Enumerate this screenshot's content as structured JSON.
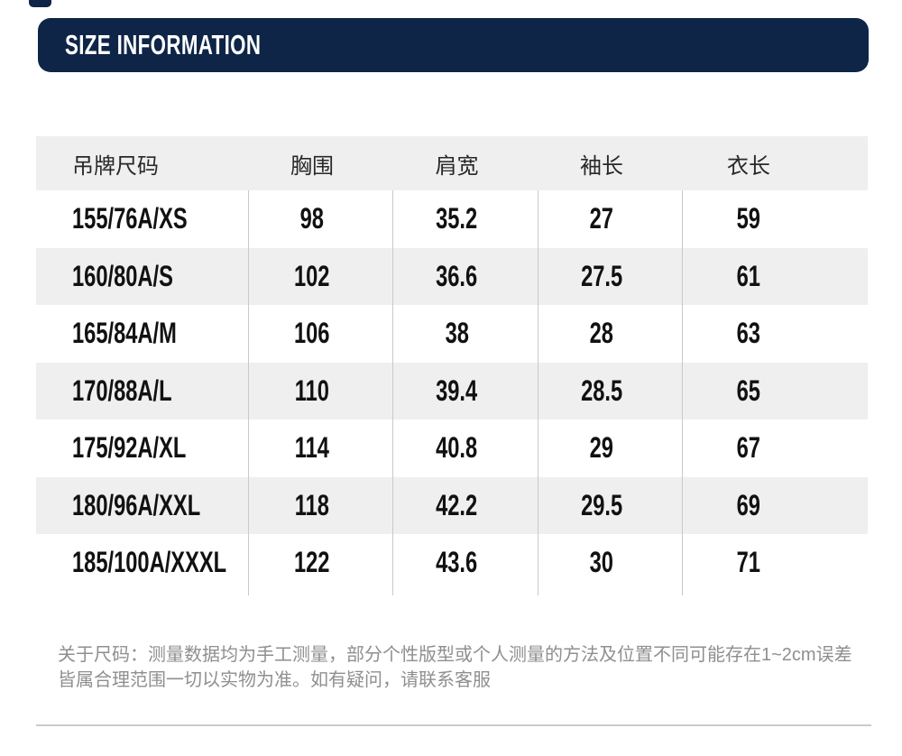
{
  "theme": {
    "navy": "#0e2547",
    "row_alt": "#efefef",
    "cell_line": "#c9c9c9",
    "text_dark": "#111111",
    "header_text": "#282828",
    "note_text": "#8f8f8f",
    "divider": "#cbcbcb",
    "page_bg": "#ffffff"
  },
  "header": {
    "title": "SIZE INFORMATION"
  },
  "size_table": {
    "columns": [
      "吊牌尺码",
      "胸围",
      "肩宽",
      "袖长",
      "衣长"
    ],
    "rows": [
      [
        "155/76A/XS",
        "98",
        "35.2",
        "27",
        "59"
      ],
      [
        "160/80A/S",
        "102",
        "36.6",
        "27.5",
        "61"
      ],
      [
        "165/84A/M",
        "106",
        "38",
        "28",
        "63"
      ],
      [
        "170/88A/L",
        "110",
        "39.4",
        "28.5",
        "65"
      ],
      [
        "175/92A/XL",
        "114",
        "40.8",
        "29",
        "67"
      ],
      [
        "180/96A/XXL",
        "118",
        "42.2",
        "29.5",
        "69"
      ],
      [
        "185/100A/XXXL",
        "122",
        "43.6",
        "30",
        "71"
      ]
    ]
  },
  "footnote": {
    "line1": "关于尺码：测量数据均为手工测量，部分个性版型或个人测量的方法及位置不同可能存在1~2cm误差",
    "line2": "皆属合理范围一切以实物为准。如有疑问，请联系客服"
  }
}
